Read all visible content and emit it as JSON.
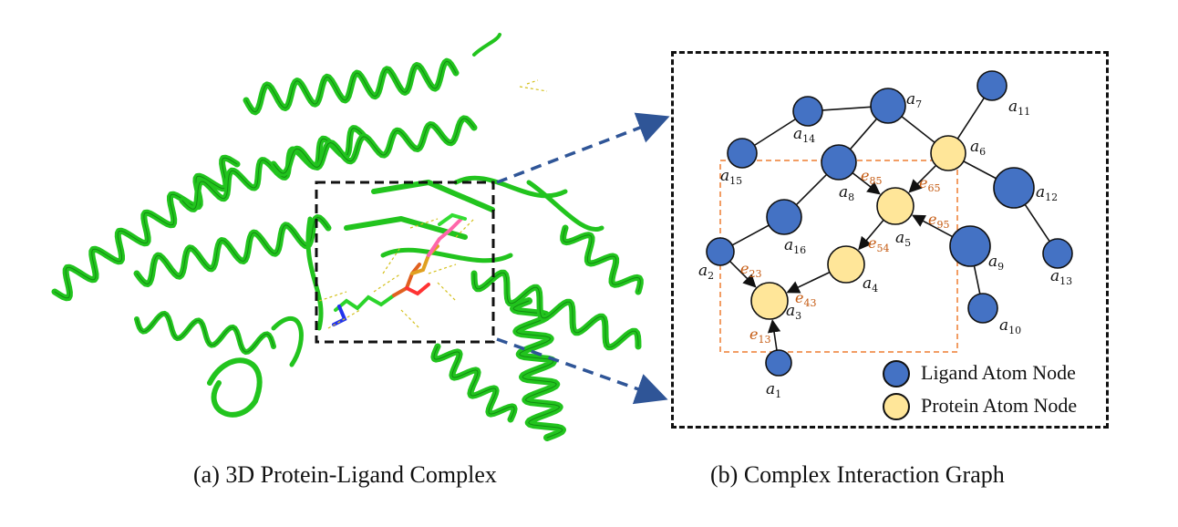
{
  "captions": {
    "a": "(a) 3D Protein-Ligand Complex",
    "b": "(b) Complex Interaction Graph"
  },
  "legend": {
    "ligand": "Ligand Atom Node",
    "protein": "Protein Atom Node"
  },
  "colors": {
    "ligand_node": "#4472C4",
    "protein_node": "#FFE699",
    "protein_ribbon": "#22C41E",
    "edge_label": "#C55A11",
    "arrow": "#2F5597",
    "pocket_box": "#ED7D31"
  },
  "nodes": [
    {
      "id": "a1",
      "base": "a",
      "sub": "1",
      "type": "ligand"
    },
    {
      "id": "a2",
      "base": "a",
      "sub": "2",
      "type": "ligand"
    },
    {
      "id": "a3",
      "base": "a",
      "sub": "3",
      "type": "protein"
    },
    {
      "id": "a4",
      "base": "a",
      "sub": "4",
      "type": "protein"
    },
    {
      "id": "a5",
      "base": "a",
      "sub": "5",
      "type": "protein"
    },
    {
      "id": "a6",
      "base": "a",
      "sub": "6",
      "type": "protein"
    },
    {
      "id": "a7",
      "base": "a",
      "sub": "7",
      "type": "ligand"
    },
    {
      "id": "a8",
      "base": "a",
      "sub": "8",
      "type": "ligand"
    },
    {
      "id": "a9",
      "base": "a",
      "sub": "9",
      "type": "ligand"
    },
    {
      "id": "a10",
      "base": "a",
      "sub": "10",
      "type": "ligand"
    },
    {
      "id": "a11",
      "base": "a",
      "sub": "11",
      "type": "ligand"
    },
    {
      "id": "a12",
      "base": "a",
      "sub": "12",
      "type": "ligand"
    },
    {
      "id": "a13",
      "base": "a",
      "sub": "13",
      "type": "ligand"
    },
    {
      "id": "a14",
      "base": "a",
      "sub": "14",
      "type": "ligand"
    },
    {
      "id": "a15",
      "base": "a",
      "sub": "15",
      "type": "ligand"
    },
    {
      "id": "a16",
      "base": "a",
      "sub": "16",
      "type": "ligand"
    }
  ],
  "edges": [
    {
      "from": "a15",
      "to": "a14",
      "directed": false
    },
    {
      "from": "a14",
      "to": "a7",
      "directed": false
    },
    {
      "from": "a7",
      "to": "a8",
      "directed": false
    },
    {
      "from": "a7",
      "to": "a6",
      "directed": false
    },
    {
      "from": "a6",
      "to": "a11",
      "directed": false
    },
    {
      "from": "a6",
      "to": "a12",
      "directed": false
    },
    {
      "from": "a12",
      "to": "a13",
      "directed": false
    },
    {
      "from": "a8",
      "to": "a16",
      "directed": false
    },
    {
      "from": "a16",
      "to": "a2",
      "directed": false
    },
    {
      "from": "a9",
      "to": "a10",
      "directed": false
    },
    {
      "from": "a8",
      "to": "a5",
      "directed": true,
      "label": {
        "base": "e",
        "sub": "85"
      }
    },
    {
      "from": "a6",
      "to": "a5",
      "directed": true,
      "label": {
        "base": "e",
        "sub": "65"
      }
    },
    {
      "from": "a9",
      "to": "a5",
      "directed": true,
      "label": {
        "base": "e",
        "sub": "95"
      }
    },
    {
      "from": "a5",
      "to": "a4",
      "directed": true,
      "label": {
        "base": "e",
        "sub": "54"
      }
    },
    {
      "from": "a4",
      "to": "a3",
      "directed": true,
      "label": {
        "base": "e",
        "sub": "43"
      }
    },
    {
      "from": "a2",
      "to": "a3",
      "directed": true,
      "label": {
        "base": "e",
        "sub": "23"
      }
    },
    {
      "from": "a1",
      "to": "a3",
      "directed": true,
      "label": {
        "base": "e",
        "sub": "13"
      }
    }
  ]
}
